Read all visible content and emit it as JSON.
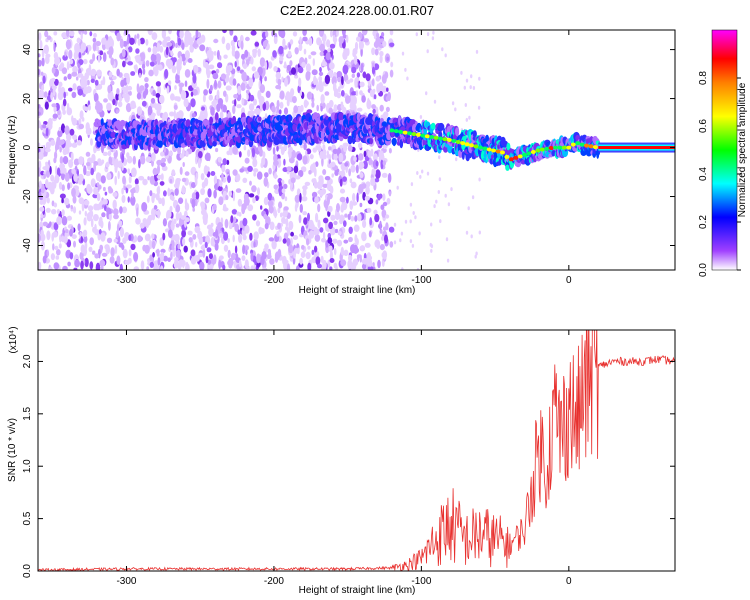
{
  "title": "C2E2.2024.228.00.01.R07",
  "chart_data": [
    {
      "type": "heatmap",
      "xlabel": "Height of straight line (km)",
      "ylabel": "Frequency (Hz)",
      "xlim": [
        -360,
        72
      ],
      "ylim": [
        -50,
        48
      ],
      "x_ticks": [
        -300,
        -200,
        -100,
        0
      ],
      "x_tick_labels": [
        "-300",
        "-200",
        "-100",
        "0"
      ],
      "y_ticks": [
        -40,
        -20,
        0,
        20,
        40
      ],
      "y_tick_labels": [
        "-40",
        "-20",
        "0",
        "20",
        "40"
      ],
      "colorbar": {
        "label": "Normalized spectral amplitude",
        "range": [
          0,
          1
        ],
        "ticks": [
          0.0,
          0.2,
          0.4,
          0.6,
          0.8
        ],
        "tick_labels": [
          "0.0",
          "0.2",
          "0.4",
          "0.6",
          "0.8"
        ],
        "colors": [
          "#ffffff",
          "#8000ff",
          "#0000ff",
          "#00ffff",
          "#00ff00",
          "#ffff00",
          "#ff8000",
          "#ff0000",
          "#ff00ff"
        ]
      },
      "ridge": {
        "x": [
          -320,
          -300,
          -250,
          -200,
          -150,
          -120,
          -100,
          -80,
          -60,
          -45,
          -40,
          -30,
          -20,
          -10,
          0,
          5,
          10,
          20,
          72
        ],
        "y": [
          6,
          5,
          6,
          7,
          8,
          7,
          5,
          3,
          0,
          -2,
          -5,
          -3,
          -1,
          0,
          0,
          2,
          1,
          0,
          0
        ]
      },
      "noise_extent_x": [
        -360,
        -120
      ]
    },
    {
      "type": "line",
      "xlabel": "Height of straight line (km)",
      "ylabel": "SNR (10 * v/v)",
      "y_multiplier": "(x10⁴)",
      "xlim": [
        -360,
        72
      ],
      "ylim": [
        0,
        2.3
      ],
      "x_ticks": [
        -300,
        -200,
        -100,
        0
      ],
      "x_tick_labels": [
        "-300",
        "-200",
        "-100",
        "0"
      ],
      "y_ticks": [
        0,
        0.5,
        1.0,
        1.5,
        2.0
      ],
      "y_tick_labels": [
        "0.0",
        "0.5",
        "1.0",
        "1.5",
        "2.0"
      ],
      "color": "#e8302e",
      "series": [
        {
          "x": [
            -360,
            -300,
            -250,
            -200,
            -150,
            -120,
            -110,
            -100,
            -90,
            -80,
            -70,
            -60,
            -50,
            -40,
            -30,
            -25,
            -20,
            -15,
            -10,
            -5,
            0,
            5,
            10,
            15,
            20,
            30,
            40,
            50,
            60,
            72
          ],
          "y": [
            0.01,
            0.02,
            0.02,
            0.02,
            0.02,
            0.03,
            0.06,
            0.12,
            0.3,
            0.45,
            0.3,
            0.35,
            0.3,
            0.25,
            0.4,
            0.8,
            1.2,
            1.0,
            1.5,
            1.3,
            1.6,
            1.4,
            1.7,
            1.9,
            1.95,
            2.0,
            2.0,
            2.0,
            2.02,
            2.0
          ]
        }
      ]
    }
  ]
}
